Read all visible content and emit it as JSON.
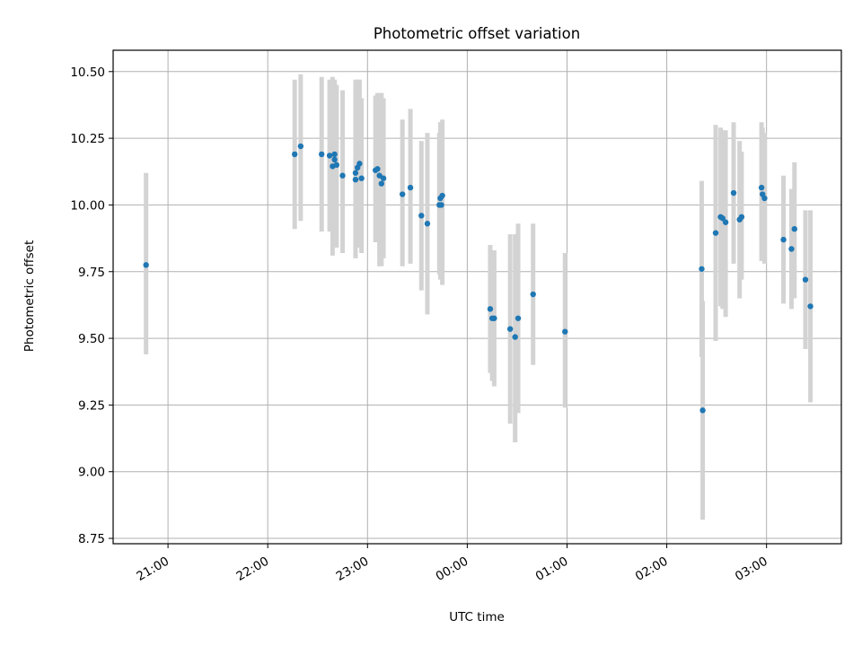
{
  "chart_data": {
    "type": "scatter",
    "title": "Photometric offset variation",
    "xlabel": "UTC time",
    "ylabel": "Photometric offset",
    "x_unit": "hours",
    "x_tick_values": [
      -3,
      -2,
      -1,
      0,
      1,
      2,
      3
    ],
    "x_tick_labels": [
      "21:00",
      "22:00",
      "23:00",
      "00:00",
      "01:00",
      "02:00",
      "03:00"
    ],
    "xlim": [
      -3.55,
      3.75
    ],
    "y_ticks": [
      "8.75",
      "9.00",
      "9.25",
      "9.50",
      "9.75",
      "10.00",
      "10.25",
      "10.50"
    ],
    "ylim": [
      8.73,
      10.58
    ],
    "grid": true,
    "marker_color": "#1f77b4",
    "errorbar_color": "#d3d3d3",
    "series": [
      {
        "points": [
          {
            "x": -3.22,
            "y": 9.775,
            "lo": 9.44,
            "hi": 10.12
          },
          {
            "x": -1.73,
            "y": 10.19,
            "lo": 9.91,
            "hi": 10.47
          },
          {
            "x": -1.67,
            "y": 10.22,
            "lo": 9.94,
            "hi": 10.49
          },
          {
            "x": -1.46,
            "y": 10.19,
            "lo": 9.9,
            "hi": 10.48
          },
          {
            "x": -1.38,
            "y": 10.185,
            "lo": 9.9,
            "hi": 10.47
          },
          {
            "x": -1.35,
            "y": 10.145,
            "lo": 9.81,
            "hi": 10.48
          },
          {
            "x": -1.33,
            "y": 10.19,
            "lo": 9.9,
            "hi": 10.47
          },
          {
            "x": -1.33,
            "y": 10.17,
            "lo": 9.89,
            "hi": 10.46
          },
          {
            "x": -1.31,
            "y": 10.15,
            "lo": 9.84,
            "hi": 10.45
          },
          {
            "x": -1.25,
            "y": 10.11,
            "lo": 9.82,
            "hi": 10.43
          },
          {
            "x": -1.12,
            "y": 10.095,
            "lo": 9.8,
            "hi": 10.47
          },
          {
            "x": -1.12,
            "y": 10.12,
            "lo": 9.82,
            "hi": 10.44
          },
          {
            "x": -1.1,
            "y": 10.14,
            "lo": 9.84,
            "hi": 10.47
          },
          {
            "x": -1.08,
            "y": 10.155,
            "lo": 9.86,
            "hi": 10.47
          },
          {
            "x": -1.06,
            "y": 10.1,
            "lo": 9.82,
            "hi": 10.4
          },
          {
            "x": -0.92,
            "y": 10.13,
            "lo": 9.86,
            "hi": 10.41
          },
          {
            "x": -0.9,
            "y": 10.135,
            "lo": 9.87,
            "hi": 10.42
          },
          {
            "x": -0.88,
            "y": 10.11,
            "lo": 9.77,
            "hi": 10.42
          },
          {
            "x": -0.86,
            "y": 10.08,
            "lo": 9.77,
            "hi": 10.42
          },
          {
            "x": -0.84,
            "y": 10.1,
            "lo": 9.8,
            "hi": 10.4
          },
          {
            "x": -0.65,
            "y": 10.04,
            "lo": 9.77,
            "hi": 10.32
          },
          {
            "x": -0.57,
            "y": 10.065,
            "lo": 9.78,
            "hi": 10.36
          },
          {
            "x": -0.46,
            "y": 9.96,
            "lo": 9.68,
            "hi": 10.24
          },
          {
            "x": -0.4,
            "y": 9.93,
            "lo": 9.59,
            "hi": 10.27
          },
          {
            "x": -0.28,
            "y": 10.0,
            "lo": 9.74,
            "hi": 10.27
          },
          {
            "x": -0.27,
            "y": 10.025,
            "lo": 9.72,
            "hi": 10.31
          },
          {
            "x": -0.26,
            "y": 10.0,
            "lo": 9.73,
            "hi": 10.31
          },
          {
            "x": -0.25,
            "y": 10.035,
            "lo": 9.7,
            "hi": 10.32
          },
          {
            "x": 0.23,
            "y": 9.61,
            "lo": 9.37,
            "hi": 9.85
          },
          {
            "x": 0.25,
            "y": 9.575,
            "lo": 9.34,
            "hi": 9.81
          },
          {
            "x": 0.27,
            "y": 9.575,
            "lo": 9.32,
            "hi": 9.83
          },
          {
            "x": 0.43,
            "y": 9.535,
            "lo": 9.18,
            "hi": 9.89
          },
          {
            "x": 0.48,
            "y": 9.505,
            "lo": 9.11,
            "hi": 9.89
          },
          {
            "x": 0.51,
            "y": 9.575,
            "lo": 9.22,
            "hi": 9.93
          },
          {
            "x": 0.66,
            "y": 9.665,
            "lo": 9.4,
            "hi": 9.93
          },
          {
            "x": 0.98,
            "y": 9.525,
            "lo": 9.24,
            "hi": 9.82
          },
          {
            "x": 2.35,
            "y": 9.76,
            "lo": 9.43,
            "hi": 10.09
          },
          {
            "x": 2.36,
            "y": 9.23,
            "lo": 8.82,
            "hi": 9.64
          },
          {
            "x": 2.49,
            "y": 9.895,
            "lo": 9.49,
            "hi": 10.3
          },
          {
            "x": 2.54,
            "y": 9.955,
            "lo": 9.62,
            "hi": 10.29
          },
          {
            "x": 2.56,
            "y": 9.95,
            "lo": 9.61,
            "hi": 10.28
          },
          {
            "x": 2.59,
            "y": 9.935,
            "lo": 9.58,
            "hi": 10.28
          },
          {
            "x": 2.67,
            "y": 10.045,
            "lo": 9.78,
            "hi": 10.31
          },
          {
            "x": 2.73,
            "y": 9.945,
            "lo": 9.65,
            "hi": 10.24
          },
          {
            "x": 2.75,
            "y": 9.955,
            "lo": 9.72,
            "hi": 10.2
          },
          {
            "x": 2.95,
            "y": 10.065,
            "lo": 9.79,
            "hi": 10.31
          },
          {
            "x": 2.96,
            "y": 10.04,
            "lo": 9.8,
            "hi": 10.29
          },
          {
            "x": 2.98,
            "y": 10.025,
            "lo": 9.78,
            "hi": 10.27
          },
          {
            "x": 3.17,
            "y": 9.87,
            "lo": 9.63,
            "hi": 10.11
          },
          {
            "x": 3.25,
            "y": 9.835,
            "lo": 9.61,
            "hi": 10.06
          },
          {
            "x": 3.28,
            "y": 9.91,
            "lo": 9.65,
            "hi": 10.16
          },
          {
            "x": 3.39,
            "y": 9.72,
            "lo": 9.46,
            "hi": 9.98
          },
          {
            "x": 3.44,
            "y": 9.62,
            "lo": 9.26,
            "hi": 9.98
          }
        ]
      }
    ]
  }
}
